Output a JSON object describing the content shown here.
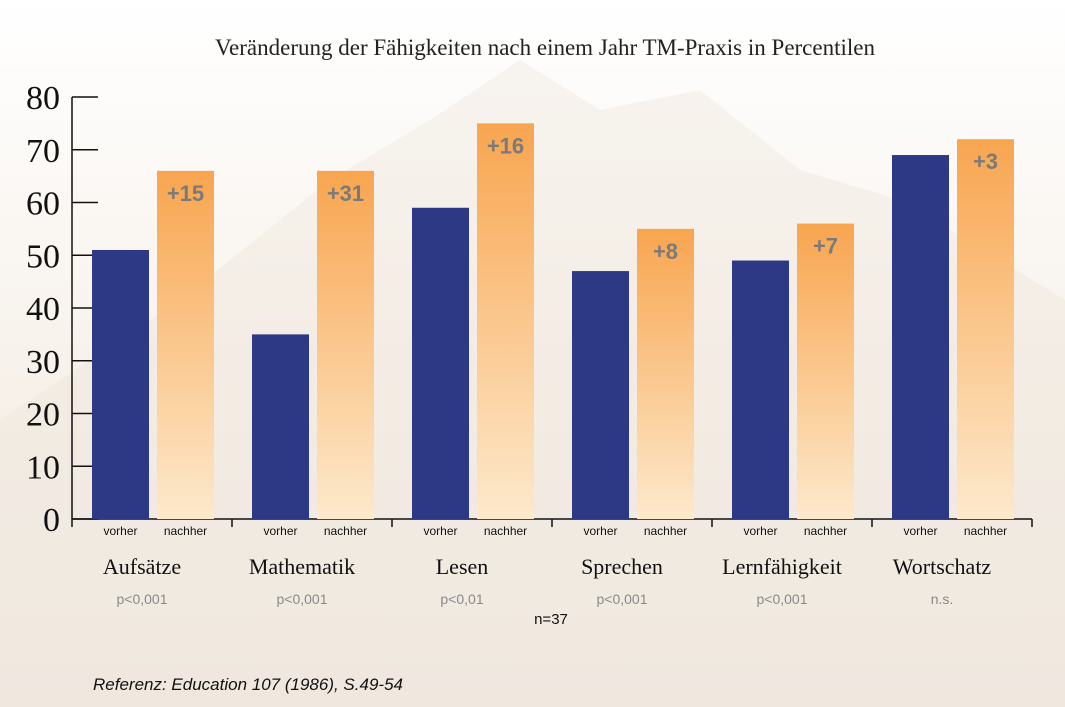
{
  "chart_data": {
    "type": "bar",
    "title": "Veränderung der Fähigkeiten nach einem Jahr TM-Praxis in Percentilen",
    "ylim": [
      0,
      80
    ],
    "yticks": [
      "0",
      "10",
      "20",
      "30",
      "40",
      "50",
      "60",
      "70",
      "80"
    ],
    "bar_labels": [
      "vorher",
      "nachher"
    ],
    "categories": [
      "Aufsätze",
      "Mathematik",
      "Lesen",
      "Sprechen",
      "Lernfähigkeit",
      "Wortschatz"
    ],
    "series": [
      {
        "name": "vorher",
        "values": [
          51,
          35,
          59,
          47,
          49,
          69
        ]
      },
      {
        "name": "nachher",
        "values": [
          66,
          66,
          75,
          55,
          56,
          72
        ]
      }
    ],
    "differences": [
      "+15",
      "+31",
      "+16",
      "+8",
      "+7",
      "+3"
    ],
    "significance": [
      "p<0,001",
      "p<0,001",
      "p<0,01",
      "p<0,001",
      "p<0,001",
      "n.s."
    ],
    "grid": false
  },
  "sample_size": "n=37",
  "reference": "Referenz: Education 107 (1986), S.49-54",
  "colors": {
    "vorher": "#2e3986",
    "nachher_top": "#f8a54f",
    "nachher_bottom": "#fde9cc",
    "axis": "#111111",
    "difference_label": "#7a7a7a",
    "significance": "#8a8a8a"
  }
}
